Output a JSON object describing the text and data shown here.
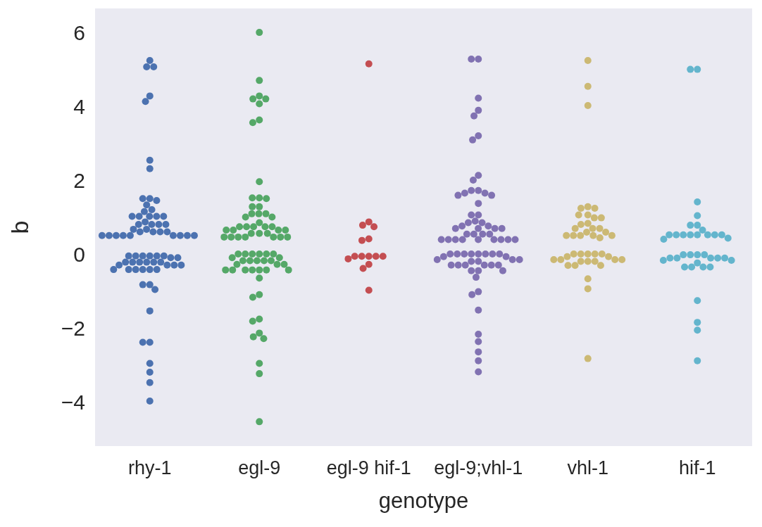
{
  "chart_data": {
    "type": "scatter",
    "xlabel": "genotype",
    "ylabel": "b",
    "categories": [
      "rhy-1",
      "egl-9",
      "egl-9 hif-1",
      "egl-9;vhl-1",
      "vhl-1",
      "hif-1"
    ],
    "ylim": [
      -5.2,
      6.65
    ],
    "yticks": [
      {
        "value": -4,
        "label": "−4"
      },
      {
        "value": -2,
        "label": "−2"
      },
      0,
      2,
      4,
      6
    ],
    "grid": false,
    "marker": "circle",
    "series": [
      {
        "color": "#4c72b0",
        "x": [
          "rhy-1",
          "rhy-1",
          "rhy-1",
          "rhy-1",
          "rhy-1",
          "rhy-1",
          "rhy-1",
          "rhy-1",
          "rhy-1",
          "rhy-1",
          "rhy-1",
          "rhy-1",
          "rhy-1",
          "rhy-1",
          "rhy-1",
          "rhy-1",
          "rhy-1",
          "rhy-1",
          "rhy-1",
          "rhy-1",
          "rhy-1",
          "rhy-1",
          "rhy-1",
          "rhy-1",
          "rhy-1",
          "rhy-1",
          "rhy-1",
          "rhy-1",
          "rhy-1",
          "rhy-1",
          "rhy-1",
          "rhy-1",
          "rhy-1",
          "rhy-1",
          "rhy-1",
          "rhy-1",
          "rhy-1",
          "rhy-1",
          "rhy-1",
          "rhy-1",
          "rhy-1",
          "rhy-1",
          "rhy-1",
          "rhy-1",
          "rhy-1",
          "rhy-1",
          "rhy-1",
          "rhy-1",
          "rhy-1",
          "rhy-1",
          "rhy-1",
          "rhy-1",
          "rhy-1",
          "rhy-1",
          "rhy-1",
          "rhy-1",
          "rhy-1",
          "rhy-1",
          "rhy-1",
          "rhy-1",
          "rhy-1",
          "rhy-1",
          "rhy-1",
          "rhy-1",
          "rhy-1",
          "rhy-1",
          "rhy-1",
          "rhy-1",
          "rhy-1",
          "rhy-1",
          "rhy-1",
          "rhy-1"
        ],
        "values": [
          5.24,
          5.07,
          5.07,
          4.28,
          4.13,
          2.54,
          2.31,
          1.5,
          1.5,
          1.45,
          1.33,
          1.2,
          1.15,
          1.02,
          1.02,
          1.02,
          1.02,
          1.02,
          0.87,
          0.8,
          0.8,
          0.8,
          0.8,
          0.67,
          0.67,
          0.6,
          0.6,
          0.6,
          0.6,
          0.5,
          0.5,
          0.5,
          0.5,
          0.5,
          0.5,
          0.5,
          0.5,
          0.5,
          -0.05,
          -0.05,
          -0.05,
          -0.05,
          -0.05,
          -0.05,
          -0.1,
          -0.1,
          -0.22,
          -0.22,
          -0.22,
          -0.22,
          -0.22,
          -0.22,
          -0.3,
          -0.3,
          -0.3,
          -0.3,
          -0.42,
          -0.42,
          -0.42,
          -0.42,
          -0.42,
          -0.42,
          -0.83,
          -0.83,
          -0.96,
          -1.54,
          -2.39,
          -2.39,
          -2.96,
          -3.2,
          -3.48,
          -3.98
        ]
      },
      {
        "color": "#55a868",
        "x": [
          "egl-9",
          "egl-9",
          "egl-9",
          "egl-9",
          "egl-9",
          "egl-9",
          "egl-9",
          "egl-9",
          "egl-9",
          "egl-9",
          "egl-9",
          "egl-9",
          "egl-9",
          "egl-9",
          "egl-9",
          "egl-9",
          "egl-9",
          "egl-9",
          "egl-9",
          "egl-9",
          "egl-9",
          "egl-9",
          "egl-9",
          "egl-9",
          "egl-9",
          "egl-9",
          "egl-9",
          "egl-9",
          "egl-9",
          "egl-9",
          "egl-9",
          "egl-9",
          "egl-9",
          "egl-9",
          "egl-9",
          "egl-9",
          "egl-9",
          "egl-9",
          "egl-9",
          "egl-9",
          "egl-9",
          "egl-9",
          "egl-9",
          "egl-9",
          "egl-9",
          "egl-9",
          "egl-9",
          "egl-9",
          "egl-9",
          "egl-9",
          "egl-9",
          "egl-9",
          "egl-9",
          "egl-9",
          "egl-9",
          "egl-9",
          "egl-9",
          "egl-9",
          "egl-9",
          "egl-9",
          "egl-9",
          "egl-9",
          "egl-9",
          "egl-9",
          "egl-9",
          "egl-9",
          "egl-9",
          "egl-9",
          "egl-9",
          "egl-9",
          "egl-9",
          "egl-9",
          "egl-9"
        ],
        "values": [
          6.0,
          4.7,
          4.28,
          4.2,
          4.2,
          4.07,
          3.63,
          3.56,
          1.96,
          1.52,
          1.52,
          1.5,
          1.28,
          1.28,
          1.09,
          1.09,
          1.09,
          1.0,
          1.0,
          0.85,
          0.74,
          0.74,
          0.74,
          0.74,
          0.74,
          0.65,
          0.65,
          0.65,
          0.65,
          0.56,
          0.56,
          0.56,
          0.46,
          0.46,
          0.46,
          0.46,
          0.46,
          0.46,
          0.46,
          0.0,
          0.0,
          0.0,
          0.0,
          0.0,
          0.0,
          -0.1,
          -0.1,
          -0.18,
          -0.18,
          -0.18,
          -0.18,
          -0.18,
          -0.28,
          -0.28,
          -0.28,
          -0.43,
          -0.43,
          -0.43,
          -0.43,
          -0.43,
          -0.43,
          -0.43,
          -0.65,
          -1.1,
          -1.17,
          -1.76,
          -1.82,
          -2.14,
          -2.24,
          -2.29,
          -2.96,
          -3.24,
          -4.54
        ]
      },
      {
        "color": "#c44e52",
        "x": [
          "egl-9 hif-1",
          "egl-9 hif-1",
          "egl-9 hif-1",
          "egl-9 hif-1",
          "egl-9 hif-1",
          "egl-9 hif-1",
          "egl-9 hif-1",
          "egl-9 hif-1",
          "egl-9 hif-1",
          "egl-9 hif-1",
          "egl-9 hif-1",
          "egl-9 hif-1",
          "egl-9 hif-1",
          "egl-9 hif-1",
          "egl-9 hif-1"
        ],
        "values": [
          5.15,
          0.87,
          0.78,
          0.74,
          0.41,
          0.37,
          -0.06,
          -0.06,
          -0.06,
          -0.06,
          -0.06,
          -0.13,
          -0.28,
          -0.39,
          -0.98
        ]
      },
      {
        "color": "#8172b2",
        "x": [
          "egl-9;vhl-1",
          "egl-9;vhl-1",
          "egl-9;vhl-1",
          "egl-9;vhl-1",
          "egl-9;vhl-1",
          "egl-9;vhl-1",
          "egl-9;vhl-1",
          "egl-9;vhl-1",
          "egl-9;vhl-1",
          "egl-9;vhl-1",
          "egl-9;vhl-1",
          "egl-9;vhl-1",
          "egl-9;vhl-1",
          "egl-9;vhl-1",
          "egl-9;vhl-1",
          "egl-9;vhl-1",
          "egl-9;vhl-1",
          "egl-9;vhl-1",
          "egl-9;vhl-1",
          "egl-9;vhl-1",
          "egl-9;vhl-1",
          "egl-9;vhl-1",
          "egl-9;vhl-1",
          "egl-9;vhl-1",
          "egl-9;vhl-1",
          "egl-9;vhl-1",
          "egl-9;vhl-1",
          "egl-9;vhl-1",
          "egl-9;vhl-1",
          "egl-9;vhl-1",
          "egl-9;vhl-1",
          "egl-9;vhl-1",
          "egl-9;vhl-1",
          "egl-9;vhl-1",
          "egl-9;vhl-1",
          "egl-9;vhl-1",
          "egl-9;vhl-1",
          "egl-9;vhl-1",
          "egl-9;vhl-1",
          "egl-9;vhl-1",
          "egl-9;vhl-1",
          "egl-9;vhl-1",
          "egl-9;vhl-1",
          "egl-9;vhl-1",
          "egl-9;vhl-1",
          "egl-9;vhl-1",
          "egl-9;vhl-1",
          "egl-9;vhl-1",
          "egl-9;vhl-1",
          "egl-9;vhl-1",
          "egl-9;vhl-1",
          "egl-9;vhl-1",
          "egl-9;vhl-1",
          "egl-9;vhl-1",
          "egl-9;vhl-1",
          "egl-9;vhl-1",
          "egl-9;vhl-1",
          "egl-9;vhl-1",
          "egl-9;vhl-1",
          "egl-9;vhl-1",
          "egl-9;vhl-1",
          "egl-9;vhl-1",
          "egl-9;vhl-1",
          "egl-9;vhl-1",
          "egl-9;vhl-1",
          "egl-9;vhl-1",
          "egl-9;vhl-1",
          "egl-9;vhl-1",
          "egl-9;vhl-1",
          "egl-9;vhl-1",
          "egl-9;vhl-1",
          "egl-9;vhl-1",
          "egl-9;vhl-1"
        ],
        "values": [
          5.28,
          5.28,
          4.22,
          3.89,
          3.74,
          3.2,
          3.09,
          2.13,
          2.0,
          1.72,
          1.72,
          1.65,
          1.65,
          1.59,
          1.59,
          1.37,
          1.06,
          1.06,
          0.89,
          0.85,
          0.85,
          0.76,
          0.76,
          0.69,
          0.69,
          0.69,
          0.69,
          0.54,
          0.54,
          0.54,
          0.54,
          0.39,
          0.39,
          0.39,
          0.39,
          0.39,
          0.39,
          0.39,
          0.39,
          0.39,
          0.0,
          0.0,
          0.0,
          0.0,
          0.0,
          0.0,
          0.0,
          0.0,
          -0.07,
          -0.07,
          -0.15,
          -0.15,
          -0.15,
          -0.2,
          -0.2,
          -0.3,
          -0.3,
          -0.3,
          -0.3,
          -0.3,
          -0.3,
          -0.45,
          -0.45,
          -0.45,
          -0.63,
          -1.02,
          -1.1,
          -1.52,
          -2.17,
          -2.37,
          -2.65,
          -2.89,
          -3.19
        ]
      },
      {
        "color": "#ccb974",
        "x": [
          "vhl-1",
          "vhl-1",
          "vhl-1",
          "vhl-1",
          "vhl-1",
          "vhl-1",
          "vhl-1",
          "vhl-1",
          "vhl-1",
          "vhl-1",
          "vhl-1",
          "vhl-1",
          "vhl-1",
          "vhl-1",
          "vhl-1",
          "vhl-1",
          "vhl-1",
          "vhl-1",
          "vhl-1",
          "vhl-1",
          "vhl-1",
          "vhl-1",
          "vhl-1",
          "vhl-1",
          "vhl-1",
          "vhl-1",
          "vhl-1",
          "vhl-1",
          "vhl-1",
          "vhl-1",
          "vhl-1",
          "vhl-1",
          "vhl-1",
          "vhl-1",
          "vhl-1",
          "vhl-1",
          "vhl-1",
          "vhl-1",
          "vhl-1",
          "vhl-1",
          "vhl-1",
          "vhl-1",
          "vhl-1"
        ],
        "values": [
          5.24,
          4.54,
          4.02,
          1.28,
          1.24,
          1.24,
          1.06,
          1.06,
          0.98,
          0.98,
          0.83,
          0.8,
          0.69,
          0.69,
          0.69,
          0.59,
          0.59,
          0.5,
          0.5,
          0.5,
          0.5,
          0.5,
          0.44,
          0.0,
          0.0,
          0.0,
          0.0,
          0.0,
          -0.07,
          -0.07,
          -0.15,
          -0.15,
          -0.15,
          -0.15,
          -0.2,
          -0.2,
          -0.2,
          -0.31,
          -0.31,
          -0.31,
          -0.67,
          -0.94,
          -2.83
        ]
      },
      {
        "color": "#64b5cd",
        "x": [
          "hif-1",
          "hif-1",
          "hif-1",
          "hif-1",
          "hif-1",
          "hif-1",
          "hif-1",
          "hif-1",
          "hif-1",
          "hif-1",
          "hif-1",
          "hif-1",
          "hif-1",
          "hif-1",
          "hif-1",
          "hif-1",
          "hif-1",
          "hif-1",
          "hif-1",
          "hif-1",
          "hif-1",
          "hif-1",
          "hif-1",
          "hif-1",
          "hif-1",
          "hif-1",
          "hif-1",
          "hif-1",
          "hif-1",
          "hif-1",
          "hif-1",
          "hif-1",
          "hif-1",
          "hif-1",
          "hif-1",
          "hif-1",
          "hif-1"
        ],
        "values": [
          5.0,
          5.0,
          1.41,
          1.04,
          0.78,
          0.78,
          0.65,
          0.52,
          0.52,
          0.52,
          0.52,
          0.52,
          0.52,
          0.52,
          0.52,
          0.43,
          0.4,
          -0.02,
          -0.02,
          -0.02,
          -0.02,
          -0.11,
          -0.11,
          -0.11,
          -0.11,
          -0.11,
          -0.17,
          -0.17,
          -0.24,
          -0.35,
          -0.35,
          -0.35,
          -0.35,
          -1.26,
          -1.85,
          -2.06,
          -2.89
        ]
      }
    ]
  }
}
